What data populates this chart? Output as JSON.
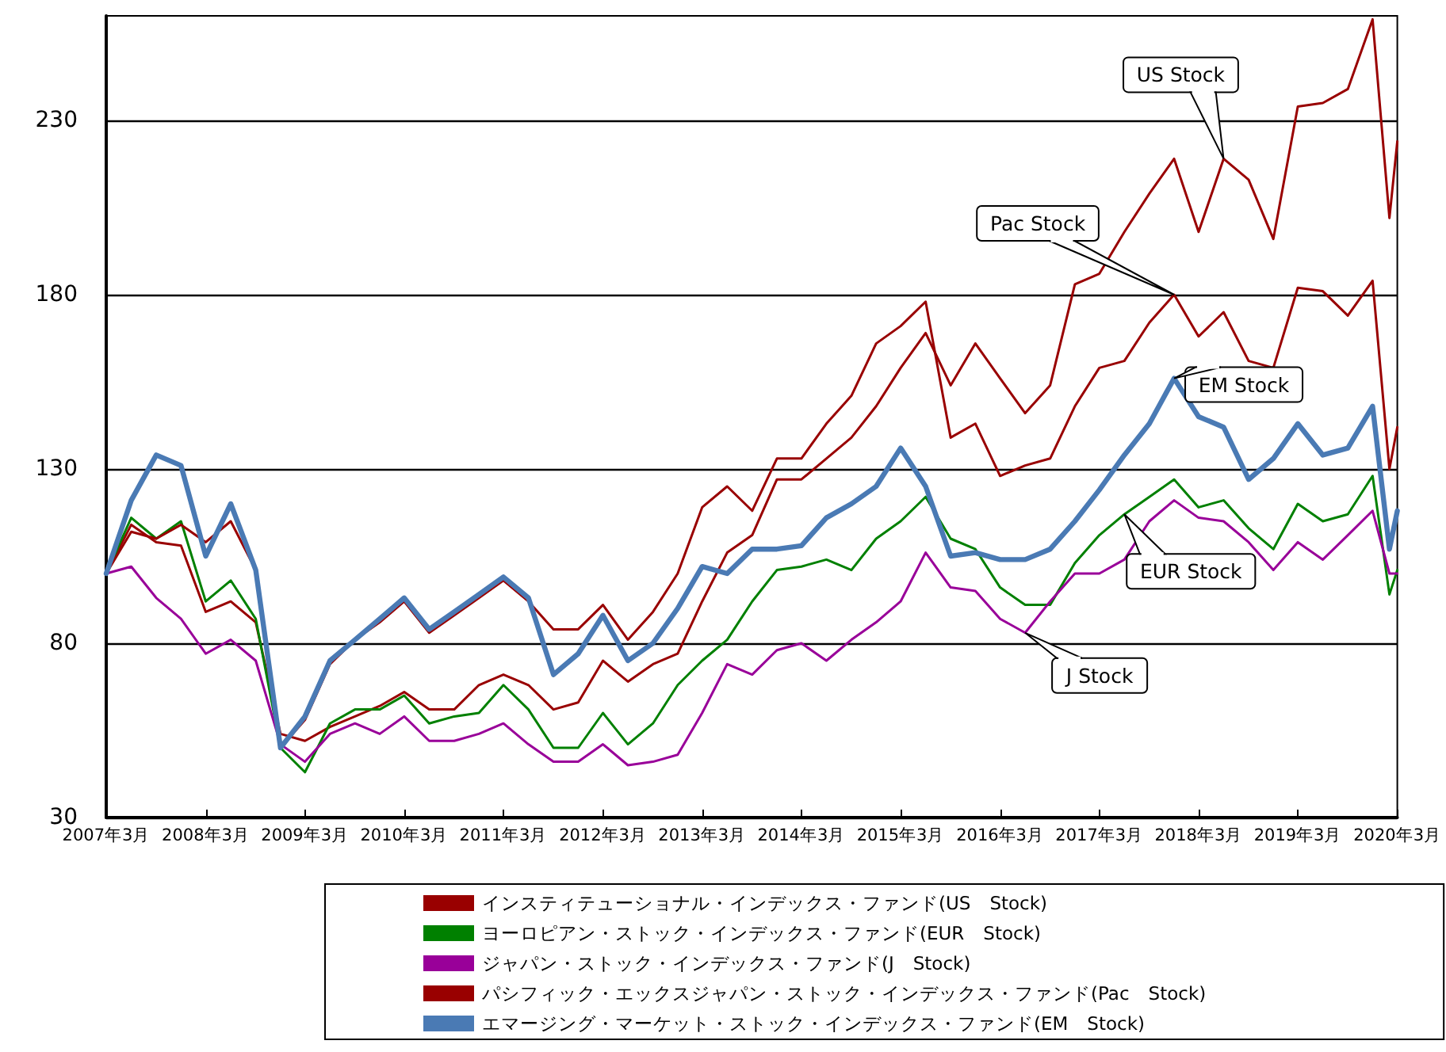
{
  "chart_data": {
    "type": "line",
    "x": [
      "2007-03",
      "2007-06",
      "2007-09",
      "2007-12",
      "2008-03",
      "2008-06",
      "2008-09",
      "2008-12",
      "2009-03",
      "2009-06",
      "2009-09",
      "2009-12",
      "2010-03",
      "2010-06",
      "2010-09",
      "2010-12",
      "2011-03",
      "2011-06",
      "2011-09",
      "2011-12",
      "2012-03",
      "2012-06",
      "2012-09",
      "2012-12",
      "2013-03",
      "2013-06",
      "2013-09",
      "2013-12",
      "2014-03",
      "2014-06",
      "2014-09",
      "2014-12",
      "2015-03",
      "2015-06",
      "2015-09",
      "2015-12",
      "2016-03",
      "2016-06",
      "2016-09",
      "2016-12",
      "2017-03",
      "2017-06",
      "2017-09",
      "2017-12",
      "2018-03",
      "2018-06",
      "2018-09",
      "2018-12",
      "2019-03",
      "2019-06",
      "2019-09",
      "2019-12",
      "2020-02",
      "2020-03"
    ],
    "series": [
      {
        "name": "インスティテューショナル・インデックス・ファンド(US　Stock)",
        "color": "#990000",
        "values": [
          100,
          114,
          109,
          108,
          89,
          92,
          86,
          54,
          52,
          56,
          59,
          62,
          66,
          61,
          61,
          68,
          71,
          68,
          61,
          63,
          75,
          69,
          74,
          77,
          92,
          106,
          111,
          127,
          127,
          133,
          139,
          148,
          159,
          169,
          154,
          166,
          156,
          146,
          154,
          183,
          186,
          198,
          209,
          219,
          198,
          219,
          213,
          196,
          234,
          235,
          239,
          259,
          202,
          224
        ]
      },
      {
        "name": "ヨーロピアン・ストック・インデックス・ファンド(EUR　Stock)",
        "color": "#008000",
        "values": [
          100,
          116,
          110,
          115,
          92,
          98,
          87,
          50,
          43,
          57,
          61,
          61,
          65,
          57,
          59,
          60,
          68,
          61,
          50,
          50,
          60,
          51,
          57,
          68,
          75,
          81,
          92,
          101,
          102,
          104,
          101,
          110,
          115,
          122,
          110,
          107,
          96,
          91,
          91,
          103,
          111,
          117,
          122,
          127,
          119,
          121,
          113,
          107,
          120,
          115,
          117,
          128,
          94,
          101
        ]
      },
      {
        "name": "ジャパン・ストック・インデックス・ファンド(J　Stock)",
        "color": "#990099",
        "values": [
          100,
          102,
          93,
          87,
          77,
          81,
          75,
          51,
          46,
          54,
          57,
          54,
          59,
          52,
          52,
          54,
          57,
          51,
          46,
          46,
          51,
          45,
          46,
          48,
          60,
          74,
          71,
          78,
          80,
          75,
          81,
          86,
          92,
          106,
          96,
          95,
          87,
          83,
          92,
          100,
          100,
          104,
          115,
          121,
          116,
          115,
          109,
          101,
          109,
          104,
          111,
          118,
          100,
          100
        ]
      },
      {
        "name": "パシフィック・エックスジャパン・ストック・インデックス・ファンド(Pac　Stock)",
        "color": "#990000",
        "values": [
          100,
          112,
          110,
          114,
          109,
          115,
          101,
          50,
          58,
          74,
          81,
          86,
          92,
          83,
          88,
          93,
          98,
          92,
          84,
          84,
          91,
          81,
          89,
          100,
          119,
          125,
          118,
          133,
          133,
          143,
          151,
          166,
          171,
          178,
          139,
          143,
          128,
          131,
          133,
          148,
          159,
          161,
          172,
          180,
          168,
          175,
          161,
          159,
          182,
          181,
          174,
          184,
          130,
          142
        ]
      },
      {
        "name": "エマージング・マーケット・ストック・インデックス・ファンド(EM　Stock)",
        "color": "#4a7ab4",
        "values": [
          100,
          121,
          134,
          131,
          105,
          120,
          101,
          50,
          59,
          75,
          81,
          87,
          93,
          84,
          89,
          94,
          99,
          93,
          71,
          77,
          88,
          75,
          80,
          90,
          102,
          100,
          107,
          107,
          108,
          116,
          120,
          125,
          136,
          125,
          105,
          106,
          104,
          104,
          107,
          115,
          124,
          134,
          143,
          156,
          145,
          142,
          127,
          133,
          143,
          134,
          136,
          148,
          107,
          118
        ]
      }
    ],
    "xlim": [
      "2007-03",
      "2020-03"
    ],
    "xticks": [
      {
        "value": "2007-03",
        "label": "2007年3月"
      },
      {
        "value": "2008-03",
        "label": "2008年3月"
      },
      {
        "value": "2009-03",
        "label": "2009年3月"
      },
      {
        "value": "2010-03",
        "label": "2010年3月"
      },
      {
        "value": "2011-03",
        "label": "2011年3月"
      },
      {
        "value": "2012-03",
        "label": "2012年3月"
      },
      {
        "value": "2013-03",
        "label": "2013年3月"
      },
      {
        "value": "2014-03",
        "label": "2014年3月"
      },
      {
        "value": "2015-03",
        "label": "2015年3月"
      },
      {
        "value": "2016-03",
        "label": "2016年3月"
      },
      {
        "value": "2017-03",
        "label": "2017年3月"
      },
      {
        "value": "2018-03",
        "label": "2018年3月"
      },
      {
        "value": "2019-03",
        "label": "2019年3月"
      },
      {
        "value": "2020-03",
        "label": "2020年3月"
      }
    ],
    "ylim": [
      30,
      260
    ],
    "yticks": [
      30,
      80,
      130,
      180,
      230
    ],
    "grid": "y",
    "legend": "bottom",
    "annotations": [
      {
        "text": "US Stock",
        "x": "2018-06",
        "y": 219
      },
      {
        "text": "Pac Stock",
        "x": "2017-12",
        "y": 180
      },
      {
        "text": "EM Stock",
        "x": "2017-12",
        "y": 156
      },
      {
        "text": "EUR Stock",
        "x": "2017-06",
        "y": 117
      },
      {
        "text": "J Stock",
        "x": "2016-06",
        "y": 83
      }
    ]
  }
}
